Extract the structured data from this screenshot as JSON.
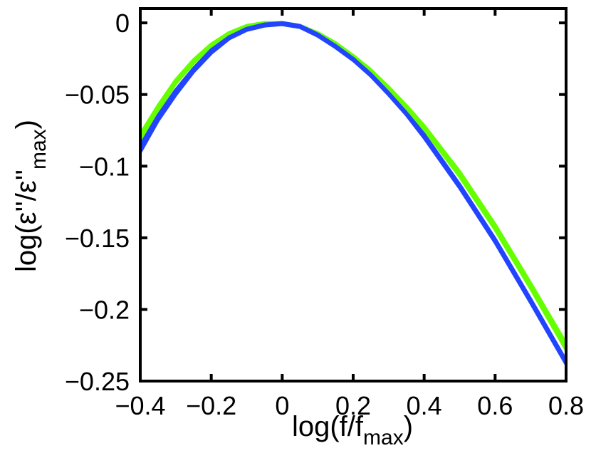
{
  "chart_data": {
    "type": "line",
    "xlabel": "log(f/f",
    "xlabel_sub": "max",
    "xlabel_close": ")",
    "ylabel": "log(ε''/ε''",
    "ylabel_sub": "max",
    "ylabel_close": ")",
    "xlim": [
      -0.4,
      0.8
    ],
    "ylim": [
      -0.25,
      0.01
    ],
    "xticks": [
      -0.4,
      -0.2,
      0,
      0.2,
      0.4,
      0.6,
      0.8
    ],
    "xtick_labels": [
      "−0.4",
      "−0.2",
      "0",
      "0.2",
      "0.4",
      "0.6",
      "0.8"
    ],
    "yticks": [
      0,
      -0.05,
      -0.1,
      -0.15,
      -0.2,
      -0.25
    ],
    "ytick_labels": [
      "0",
      "−0.05",
      "−0.1",
      "−0.15",
      "−0.2",
      "−0.25"
    ],
    "grid": false,
    "series": [
      {
        "color": "#66ff00",
        "x": [
          -0.4,
          -0.35,
          -0.3,
          -0.25,
          -0.2,
          -0.15,
          -0.1,
          -0.05,
          0,
          0.05,
          0.1,
          0.15,
          0.2,
          0.25,
          0.3,
          0.35,
          0.4,
          0.5,
          0.6,
          0.7,
          0.8
        ],
        "y": [
          -0.078,
          -0.058,
          -0.04,
          -0.026,
          -0.015,
          -0.007,
          -0.002,
          0,
          0,
          -0.002,
          -0.007,
          -0.014,
          -0.023,
          -0.033,
          -0.045,
          -0.058,
          -0.072,
          -0.104,
          -0.141,
          -0.182,
          -0.224
        ]
      },
      {
        "color": "#66ff00",
        "x": [
          -0.4,
          -0.35,
          -0.3,
          -0.25,
          -0.2,
          -0.15,
          -0.1,
          -0.05,
          0,
          0.05,
          0.1,
          0.15,
          0.2,
          0.25,
          0.3,
          0.35,
          0.4,
          0.5,
          0.6,
          0.7,
          0.8
        ],
        "y": [
          -0.082,
          -0.061,
          -0.042,
          -0.028,
          -0.016,
          -0.008,
          -0.003,
          -0.001,
          -0.001,
          -0.003,
          -0.008,
          -0.015,
          -0.024,
          -0.034,
          -0.046,
          -0.06,
          -0.074,
          -0.107,
          -0.144,
          -0.185,
          -0.228
        ]
      },
      {
        "color": "#2244ff",
        "x": [
          -0.4,
          -0.35,
          -0.3,
          -0.25,
          -0.2,
          -0.15,
          -0.1,
          -0.05,
          0,
          0.05,
          0.1,
          0.15,
          0.2,
          0.25,
          0.3,
          0.35,
          0.4,
          0.5,
          0.6,
          0.7,
          0.8
        ],
        "y": [
          -0.086,
          -0.065,
          -0.047,
          -0.032,
          -0.019,
          -0.01,
          -0.004,
          -0.001,
          0,
          -0.002,
          -0.008,
          -0.016,
          -0.025,
          -0.036,
          -0.049,
          -0.063,
          -0.078,
          -0.113,
          -0.151,
          -0.193,
          -0.236
        ]
      },
      {
        "color": "#2244ff",
        "x": [
          -0.4,
          -0.35,
          -0.3,
          -0.25,
          -0.2,
          -0.15,
          -0.1,
          -0.05,
          0,
          0.05,
          0.1,
          0.15,
          0.2,
          0.25,
          0.3,
          0.35,
          0.4,
          0.5,
          0.6,
          0.7,
          0.8
        ],
        "y": [
          -0.09,
          -0.068,
          -0.05,
          -0.034,
          -0.021,
          -0.011,
          -0.005,
          -0.002,
          -0.001,
          -0.003,
          -0.009,
          -0.017,
          -0.026,
          -0.037,
          -0.05,
          -0.064,
          -0.08,
          -0.115,
          -0.153,
          -0.195,
          -0.238
        ]
      }
    ]
  }
}
